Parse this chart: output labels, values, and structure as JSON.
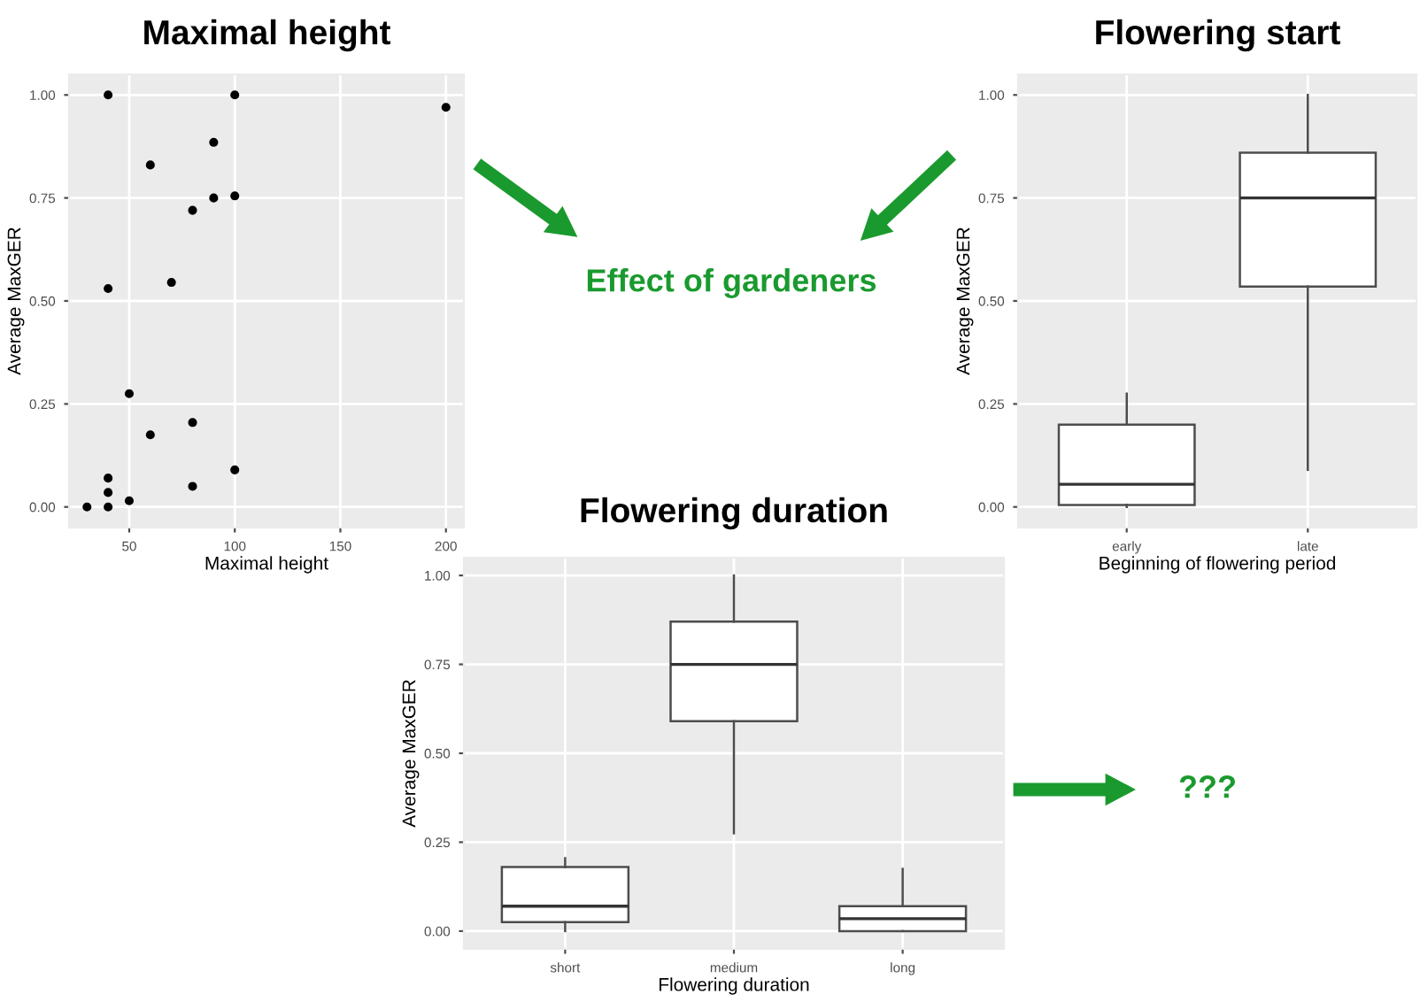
{
  "chart_data": [
    {
      "type": "scatter",
      "title": "Maximal height",
      "xlabel": "Maximal height",
      "ylabel": "Average MaxGER",
      "x": [
        40,
        100,
        200,
        90,
        60,
        90,
        100,
        80,
        40,
        70,
        50,
        80,
        60,
        100,
        40,
        80,
        40,
        50,
        30,
        40
      ],
      "values": [
        1.0,
        1.0,
        0.97,
        0.885,
        0.83,
        0.75,
        0.755,
        0.72,
        0.53,
        0.545,
        0.275,
        0.205,
        0.175,
        0.09,
        0.07,
        0.05,
        0.035,
        0.015,
        0.0,
        0.0
      ],
      "color": "#000000",
      "marker": "circle",
      "xlim": [
        21.5,
        208.5
      ],
      "xticks": [
        50,
        100,
        150,
        200
      ],
      "ylim": [
        -0.05,
        1.05
      ],
      "yticks": [
        "0.00",
        "0.25",
        "0.50",
        "0.75",
        "1.00"
      ],
      "grid": true,
      "annotations": [
        "Effect of gardeners"
      ]
    },
    {
      "type": "box",
      "title": "Flowering start",
      "xlabel": "Beginning of flowering period",
      "ylabel": "Average MaxGER",
      "categories": [
        "early",
        "late"
      ],
      "boxes": [
        {
          "low": 0.0,
          "q1": 0.005,
          "median": 0.055,
          "q3": 0.2,
          "high": 0.275
        },
        {
          "low": 0.09,
          "q1": 0.535,
          "median": 0.75,
          "q3": 0.86,
          "high": 1.0
        }
      ],
      "ylim": [
        -0.05,
        1.05
      ],
      "yticks": [
        {
          "value": 0,
          "label": "0.00"
        },
        {
          "value": 0.25,
          "label": "0.25"
        },
        {
          "value": 0.5,
          "label": "0.50"
        },
        {
          "value": 0.75,
          "label": "0.75"
        },
        {
          "value": 1,
          "label": "1.00"
        }
      ],
      "grid": true
    },
    {
      "type": "box",
      "title": "Flowering duration",
      "xlabel": "Flowering duration",
      "ylabel": "Average MaxGER",
      "categories": [
        "short",
        "medium",
        "long"
      ],
      "boxes": [
        {
          "low": 0.0,
          "q1": 0.025,
          "median": 0.07,
          "q3": 0.18,
          "high": 0.205
        },
        {
          "low": 0.275,
          "q1": 0.59,
          "median": 0.75,
          "q3": 0.87,
          "high": 1.0
        },
        {
          "low": 0.0,
          "q1": 0.0,
          "median": 0.035,
          "q3": 0.07,
          "high": 0.175
        }
      ],
      "ylim": [
        -0.05,
        1.05
      ],
      "yticks": [
        {
          "value": 0,
          "label": "0.00"
        },
        {
          "value": 0.25,
          "label": "0.25"
        },
        {
          "value": 0.5,
          "label": "0.50"
        },
        {
          "value": 0.75,
          "label": "0.75"
        },
        {
          "value": 1,
          "label": "1.00"
        }
      ],
      "grid": true,
      "annotations": [
        "???"
      ]
    }
  ]
}
